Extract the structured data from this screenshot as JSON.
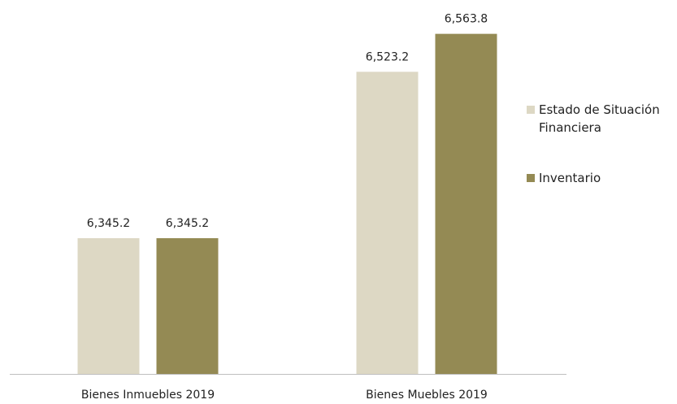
{
  "chart_data": {
    "type": "bar",
    "categories": [
      "Bienes Inmuebles 2019",
      "Bienes Muebles 2019"
    ],
    "series": [
      {
        "name": "Estado de Situación Financiera",
        "color": "#ddd8c4",
        "values": [
          6345.2,
          6523.2
        ],
        "value_labels": [
          "6,345.2",
          "6,523.2"
        ]
      },
      {
        "name": "Inventario",
        "color": "#948a54",
        "values": [
          6345.2,
          6563.8
        ],
        "value_labels": [
          "6,345.2",
          "6,563.8"
        ]
      }
    ],
    "ylim": [
      6200,
      6600
    ],
    "legend": "right"
  }
}
